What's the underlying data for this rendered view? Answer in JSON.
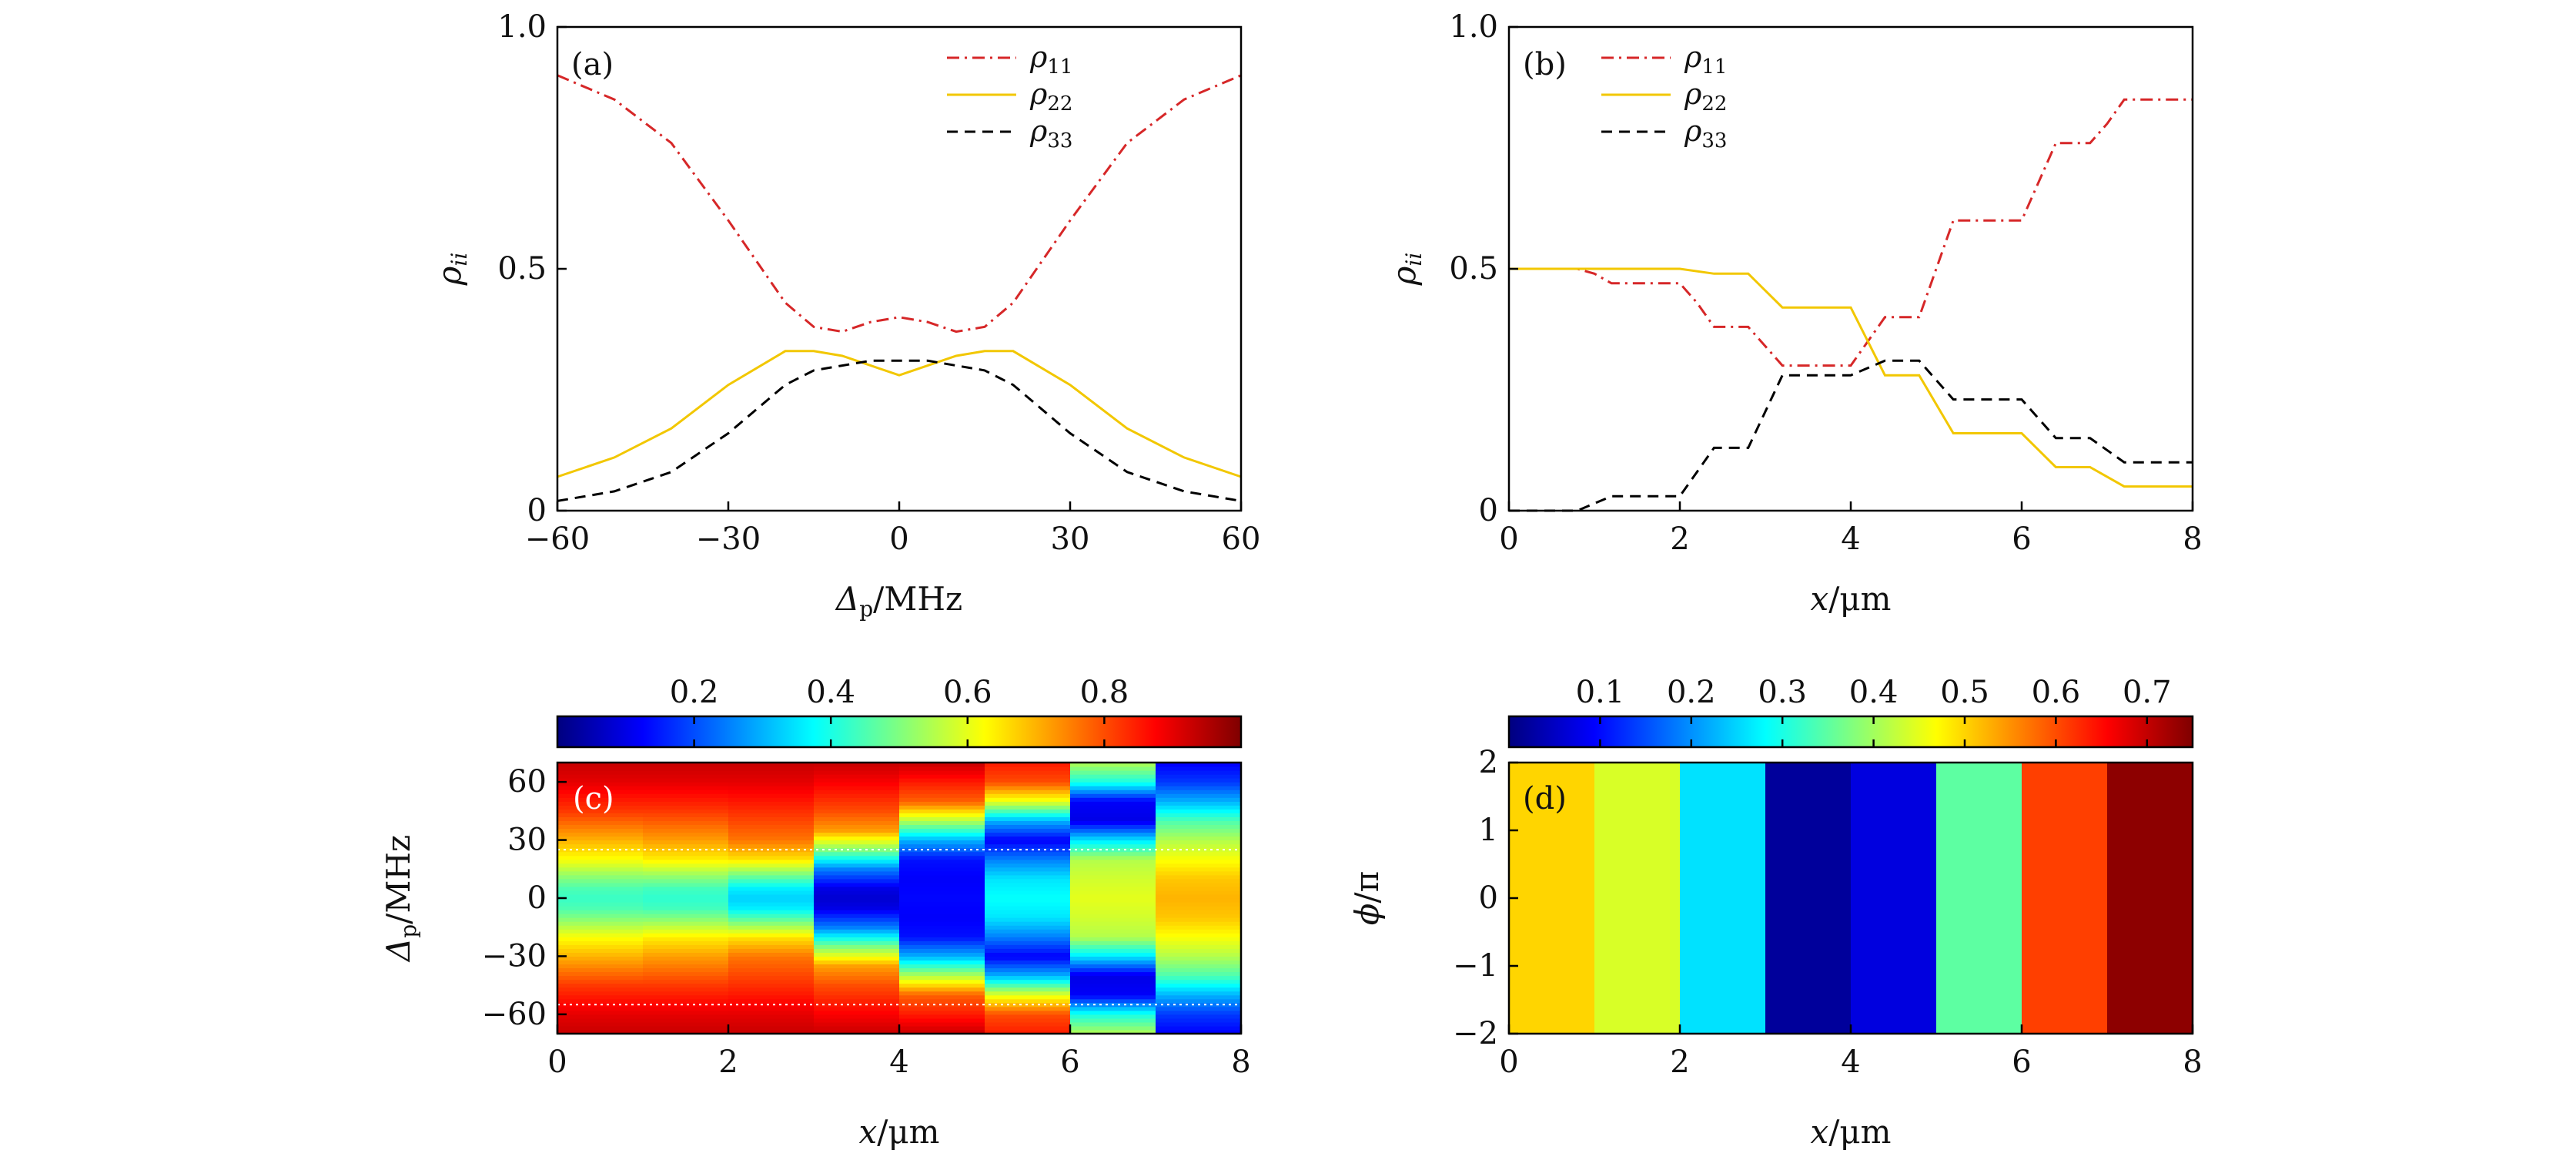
{
  "chart_data": [
    {
      "panel": "(a)",
      "type": "line",
      "xlabel": "Δp/MHz",
      "ylabel": "ρii",
      "xlim": [
        -60,
        60
      ],
      "ylim": [
        0,
        1
      ],
      "xticks": [
        "−60",
        "−30",
        "0",
        "30",
        "60"
      ],
      "yticks": [
        "0",
        "0.5",
        "1.0"
      ],
      "legend_position": "top-right",
      "series": [
        {
          "name": "ρ11",
          "color": "#d62728",
          "dash": "dashdot",
          "x": [
            -60,
            -50,
            -40,
            -30,
            -20,
            -15,
            -10,
            -5,
            0,
            5,
            10,
            15,
            20,
            30,
            40,
            50,
            60
          ],
          "y": [
            0.9,
            0.85,
            0.76,
            0.6,
            0.43,
            0.38,
            0.37,
            0.39,
            0.4,
            0.39,
            0.37,
            0.38,
            0.43,
            0.6,
            0.76,
            0.85,
            0.9
          ]
        },
        {
          "name": "ρ22",
          "color": "#f2c700",
          "dash": "solid",
          "x": [
            -60,
            -50,
            -40,
            -30,
            -20,
            -15,
            -10,
            -5,
            0,
            5,
            10,
            15,
            20,
            30,
            40,
            50,
            60
          ],
          "y": [
            0.07,
            0.11,
            0.17,
            0.26,
            0.33,
            0.33,
            0.32,
            0.3,
            0.28,
            0.3,
            0.32,
            0.33,
            0.33,
            0.26,
            0.17,
            0.11,
            0.07
          ]
        },
        {
          "name": "ρ33",
          "color": "#000000",
          "dash": "dashed",
          "x": [
            -60,
            -50,
            -40,
            -30,
            -20,
            -15,
            -10,
            -5,
            0,
            5,
            10,
            15,
            20,
            30,
            40,
            50,
            60
          ],
          "y": [
            0.02,
            0.04,
            0.08,
            0.16,
            0.26,
            0.29,
            0.3,
            0.31,
            0.31,
            0.31,
            0.3,
            0.29,
            0.26,
            0.16,
            0.08,
            0.04,
            0.02
          ]
        }
      ]
    },
    {
      "panel": "(b)",
      "type": "line",
      "xlabel": "x/μm",
      "ylabel": "ρii",
      "xlim": [
        0,
        8
      ],
      "ylim": [
        0,
        1
      ],
      "xticks": [
        "0",
        "2",
        "4",
        "6",
        "8"
      ],
      "yticks": [
        "0",
        "0.5",
        "1.0"
      ],
      "legend_position": "top-left",
      "series": [
        {
          "name": "ρ11",
          "color": "#d62728",
          "dash": "dashdot",
          "x": [
            0,
            0.8,
            1.0,
            1.2,
            2.0,
            2.2,
            2.4,
            2.8,
            3.0,
            3.2,
            4.0,
            4.2,
            4.4,
            4.8,
            5.0,
            5.2,
            5.6,
            6.0,
            6.2,
            6.4,
            6.8,
            7.0,
            7.2,
            8.0
          ],
          "y": [
            0.5,
            0.5,
            0.49,
            0.47,
            0.47,
            0.43,
            0.38,
            0.38,
            0.34,
            0.3,
            0.3,
            0.35,
            0.4,
            0.4,
            0.5,
            0.6,
            0.6,
            0.6,
            0.68,
            0.76,
            0.76,
            0.8,
            0.85,
            0.85
          ]
        },
        {
          "name": "ρ22",
          "color": "#f2c700",
          "dash": "solid",
          "x": [
            0,
            2.0,
            2.4,
            2.8,
            3.2,
            4.0,
            4.4,
            4.8,
            5.2,
            6.0,
            6.4,
            6.8,
            7.2,
            8.0
          ],
          "y": [
            0.5,
            0.5,
            0.49,
            0.49,
            0.42,
            0.42,
            0.28,
            0.28,
            0.16,
            0.16,
            0.09,
            0.09,
            0.05,
            0.05
          ]
        },
        {
          "name": "ρ33",
          "color": "#000000",
          "dash": "dashed",
          "x": [
            0,
            0.8,
            1.2,
            2.0,
            2.4,
            2.8,
            3.2,
            4.0,
            4.4,
            4.8,
            5.2,
            6.0,
            6.4,
            6.8,
            7.2,
            8.0
          ],
          "y": [
            0.0,
            0.0,
            0.03,
            0.03,
            0.13,
            0.13,
            0.28,
            0.28,
            0.31,
            0.31,
            0.23,
            0.23,
            0.15,
            0.15,
            0.1,
            0.1
          ]
        }
      ]
    },
    {
      "panel": "(c)",
      "type": "heatmap",
      "xlabel": "x/μm",
      "ylabel": "Δp/MHz",
      "xlim": [
        0,
        8
      ],
      "ylim": [
        -70,
        70
      ],
      "xticks": [
        "0",
        "2",
        "4",
        "6",
        "8"
      ],
      "yticks": [
        "−60",
        "−30",
        "0",
        "30",
        "60"
      ],
      "colorbar_ticks": [
        "0.2",
        "0.4",
        "0.6",
        "0.8"
      ],
      "colorbar_range": [
        0,
        1
      ],
      "dotted_guides_y": [
        25,
        -55
      ],
      "column_profiles": [
        [
          [
            -70,
            0.93
          ],
          [
            -60,
            0.9
          ],
          [
            -45,
            0.82
          ],
          [
            -30,
            0.7
          ],
          [
            -20,
            0.62
          ],
          [
            -10,
            0.5
          ],
          [
            -5,
            0.45
          ],
          [
            0,
            0.43
          ],
          [
            5,
            0.45
          ],
          [
            10,
            0.5
          ],
          [
            20,
            0.62
          ],
          [
            30,
            0.7
          ],
          [
            45,
            0.82
          ],
          [
            60,
            0.9
          ],
          [
            70,
            0.93
          ]
        ],
        [
          [
            -70,
            0.93
          ],
          [
            -60,
            0.9
          ],
          [
            -45,
            0.82
          ],
          [
            -30,
            0.72
          ],
          [
            -20,
            0.64
          ],
          [
            -10,
            0.5
          ],
          [
            -5,
            0.44
          ],
          [
            0,
            0.42
          ],
          [
            5,
            0.44
          ],
          [
            10,
            0.5
          ],
          [
            20,
            0.64
          ],
          [
            30,
            0.72
          ],
          [
            45,
            0.82
          ],
          [
            60,
            0.9
          ],
          [
            70,
            0.93
          ]
        ],
        [
          [
            -70,
            0.93
          ],
          [
            -60,
            0.9
          ],
          [
            -45,
            0.83
          ],
          [
            -30,
            0.76
          ],
          [
            -20,
            0.65
          ],
          [
            -10,
            0.45
          ],
          [
            -5,
            0.36
          ],
          [
            0,
            0.33
          ],
          [
            5,
            0.36
          ],
          [
            10,
            0.45
          ],
          [
            20,
            0.65
          ],
          [
            30,
            0.76
          ],
          [
            45,
            0.83
          ],
          [
            60,
            0.9
          ],
          [
            70,
            0.93
          ]
        ],
        [
          [
            -70,
            0.93
          ],
          [
            -60,
            0.88
          ],
          [
            -45,
            0.8
          ],
          [
            -35,
            0.72
          ],
          [
            -25,
            0.5
          ],
          [
            -15,
            0.25
          ],
          [
            -5,
            0.1
          ],
          [
            0,
            0.08
          ],
          [
            5,
            0.1
          ],
          [
            15,
            0.25
          ],
          [
            25,
            0.5
          ],
          [
            35,
            0.72
          ],
          [
            45,
            0.8
          ],
          [
            60,
            0.88
          ],
          [
            70,
            0.93
          ]
        ],
        [
          [
            -70,
            0.93
          ],
          [
            -60,
            0.85
          ],
          [
            -50,
            0.78
          ],
          [
            -40,
            0.55
          ],
          [
            -30,
            0.3
          ],
          [
            -20,
            0.14
          ],
          [
            -10,
            0.12
          ],
          [
            0,
            0.13
          ],
          [
            10,
            0.12
          ],
          [
            20,
            0.14
          ],
          [
            30,
            0.3
          ],
          [
            40,
            0.55
          ],
          [
            50,
            0.78
          ],
          [
            60,
            0.85
          ],
          [
            70,
            0.93
          ]
        ],
        [
          [
            -70,
            0.85
          ],
          [
            -60,
            0.8
          ],
          [
            -50,
            0.6
          ],
          [
            -40,
            0.3
          ],
          [
            -30,
            0.12
          ],
          [
            -20,
            0.25
          ],
          [
            -10,
            0.35
          ],
          [
            0,
            0.38
          ],
          [
            10,
            0.35
          ],
          [
            20,
            0.25
          ],
          [
            30,
            0.12
          ],
          [
            40,
            0.3
          ],
          [
            50,
            0.6
          ],
          [
            60,
            0.8
          ],
          [
            70,
            0.85
          ]
        ],
        [
          [
            -70,
            0.55
          ],
          [
            -60,
            0.4
          ],
          [
            -50,
            0.12
          ],
          [
            -40,
            0.1
          ],
          [
            -30,
            0.35
          ],
          [
            -20,
            0.55
          ],
          [
            -10,
            0.58
          ],
          [
            0,
            0.6
          ],
          [
            10,
            0.58
          ],
          [
            20,
            0.55
          ],
          [
            30,
            0.35
          ],
          [
            40,
            0.1
          ],
          [
            50,
            0.12
          ],
          [
            60,
            0.4
          ],
          [
            70,
            0.55
          ]
        ],
        [
          [
            -70,
            0.12
          ],
          [
            -60,
            0.18
          ],
          [
            -50,
            0.3
          ],
          [
            -40,
            0.45
          ],
          [
            -30,
            0.55
          ],
          [
            -20,
            0.62
          ],
          [
            -10,
            0.68
          ],
          [
            0,
            0.7
          ],
          [
            10,
            0.68
          ],
          [
            20,
            0.62
          ],
          [
            30,
            0.55
          ],
          [
            40,
            0.45
          ],
          [
            50,
            0.3
          ],
          [
            60,
            0.18
          ],
          [
            70,
            0.12
          ]
        ]
      ]
    },
    {
      "panel": "(d)",
      "type": "heatmap",
      "xlabel": "x/μm",
      "ylabel": "ϕ/π",
      "xlim": [
        0,
        8
      ],
      "ylim": [
        -2,
        2
      ],
      "xticks": [
        "0",
        "2",
        "4",
        "6",
        "8"
      ],
      "yticks": [
        "−2",
        "−1",
        "0",
        "1",
        "2"
      ],
      "colorbar_ticks": [
        "0.1",
        "0.2",
        "0.3",
        "0.4",
        "0.5",
        "0.6",
        "0.7"
      ],
      "colorbar_range": [
        0,
        0.75
      ],
      "column_values": [
        0.5,
        0.44,
        0.26,
        0.02,
        0.07,
        0.35,
        0.61,
        0.74
      ]
    }
  ]
}
